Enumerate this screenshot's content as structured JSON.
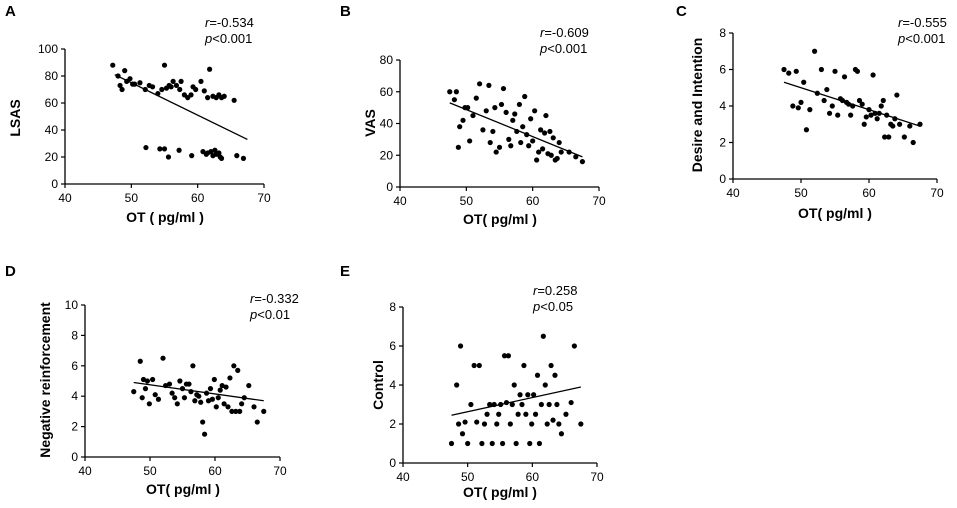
{
  "chart_data": [
    {
      "panel": "A",
      "type": "scatter",
      "xlabel": "OT ( pg/ml )",
      "ylabel": "LSAS",
      "xlim": [
        40,
        70
      ],
      "ylim": [
        0,
        100
      ],
      "xticks": [
        40,
        50,
        60,
        70
      ],
      "yticks": [
        0,
        20,
        40,
        60,
        80,
        100
      ],
      "r_label": "r",
      "r_value": "=-0.534",
      "p_label": "p",
      "p_value": "<0.001",
      "fit": [
        [
          47.5,
          81
        ],
        [
          67.5,
          33
        ]
      ],
      "points": [
        [
          47.2,
          88
        ],
        [
          48,
          80
        ],
        [
          48.3,
          73
        ],
        [
          48.6,
          70
        ],
        [
          49,
          84
        ],
        [
          49.3,
          76
        ],
        [
          49.8,
          78
        ],
        [
          50.2,
          74
        ],
        [
          50.5,
          74
        ],
        [
          51.3,
          75
        ],
        [
          52.1,
          70
        ],
        [
          52.7,
          73
        ],
        [
          53.2,
          72
        ],
        [
          54,
          67
        ],
        [
          54.6,
          70
        ],
        [
          55,
          88
        ],
        [
          55.3,
          71
        ],
        [
          55.7,
          73
        ],
        [
          56,
          72
        ],
        [
          56.3,
          76
        ],
        [
          56.8,
          73
        ],
        [
          57.3,
          70
        ],
        [
          57.5,
          76
        ],
        [
          58,
          66
        ],
        [
          58.5,
          64
        ],
        [
          59,
          66
        ],
        [
          59.3,
          72
        ],
        [
          59.7,
          70
        ],
        [
          60.5,
          76
        ],
        [
          61,
          69
        ],
        [
          61.5,
          64
        ],
        [
          61.8,
          85
        ],
        [
          62.3,
          65
        ],
        [
          62.8,
          64
        ],
        [
          63.2,
          66
        ],
        [
          63.6,
          64
        ],
        [
          64,
          65
        ],
        [
          65.5,
          62
        ],
        [
          52.2,
          27
        ],
        [
          54.3,
          26
        ],
        [
          55,
          26
        ],
        [
          55.6,
          20
        ],
        [
          57.2,
          25
        ],
        [
          59.1,
          21
        ],
        [
          60.8,
          24
        ],
        [
          61.3,
          22
        ],
        [
          61.5,
          23
        ],
        [
          62,
          24
        ],
        [
          62.3,
          21
        ],
        [
          62.6,
          25
        ],
        [
          62.8,
          22
        ],
        [
          63.2,
          23
        ],
        [
          63.4,
          20
        ],
        [
          63.6,
          19
        ],
        [
          65.9,
          21
        ],
        [
          66.9,
          19
        ]
      ]
    },
    {
      "panel": "B",
      "type": "scatter",
      "xlabel": "OT( pg/ml )",
      "ylabel": "VAS",
      "xlim": [
        40,
        70
      ],
      "ylim": [
        0,
        80
      ],
      "xticks": [
        40,
        50,
        60,
        70
      ],
      "yticks": [
        0,
        20,
        40,
        60,
        80
      ],
      "r_label": "r",
      "r_value": "=-0.609",
      "p_label": "p",
      "p_value": "<0.001",
      "fit": [
        [
          47.5,
          53
        ],
        [
          67.5,
          19
        ]
      ],
      "points": [
        [
          47.5,
          60
        ],
        [
          48.2,
          55
        ],
        [
          48.5,
          60
        ],
        [
          48.8,
          25
        ],
        [
          49,
          38
        ],
        [
          49.5,
          42
        ],
        [
          49.8,
          50
        ],
        [
          50.2,
          50
        ],
        [
          50.5,
          29
        ],
        [
          51,
          45
        ],
        [
          51.5,
          56
        ],
        [
          52,
          65
        ],
        [
          52.5,
          36
        ],
        [
          53,
          48
        ],
        [
          53.4,
          64
        ],
        [
          53.6,
          28
        ],
        [
          54,
          35
        ],
        [
          54.3,
          50
        ],
        [
          54.5,
          22
        ],
        [
          55,
          25
        ],
        [
          55.3,
          52
        ],
        [
          55.6,
          62
        ],
        [
          56,
          47
        ],
        [
          56.4,
          30
        ],
        [
          56.7,
          26
        ],
        [
          57,
          42
        ],
        [
          57.3,
          46
        ],
        [
          57.6,
          35
        ],
        [
          58,
          52
        ],
        [
          58.2,
          28
        ],
        [
          58.5,
          38
        ],
        [
          58.8,
          57
        ],
        [
          59.1,
          33
        ],
        [
          59.4,
          26
        ],
        [
          59.7,
          43
        ],
        [
          60,
          29
        ],
        [
          60.3,
          48
        ],
        [
          60.6,
          17
        ],
        [
          60.9,
          22
        ],
        [
          61.2,
          36
        ],
        [
          61.5,
          24
        ],
        [
          61.8,
          34
        ],
        [
          62,
          45
        ],
        [
          62.3,
          21
        ],
        [
          62.6,
          35
        ],
        [
          62.8,
          20
        ],
        [
          63.1,
          31
        ],
        [
          63.4,
          17
        ],
        [
          63.7,
          18
        ],
        [
          64,
          28
        ],
        [
          64.3,
          22
        ],
        [
          65.5,
          22
        ],
        [
          66.5,
          19
        ],
        [
          67.5,
          16
        ]
      ]
    },
    {
      "panel": "C",
      "type": "scatter",
      "xlabel": "OT( pg/ml )",
      "ylabel": "Desire and Intention",
      "xlim": [
        40,
        70
      ],
      "ylim": [
        0,
        8
      ],
      "xticks": [
        40,
        50,
        60,
        70
      ],
      "yticks": [
        0,
        2,
        4,
        6,
        8
      ],
      "r_label": "r",
      "r_value": "=-0.555",
      "p_label": "p",
      "p_value": "<0.001",
      "fit": [
        [
          47.5,
          5.3
        ],
        [
          67.5,
          2.9
        ]
      ],
      "points": [
        [
          47.5,
          6
        ],
        [
          48.2,
          5.8
        ],
        [
          48.8,
          4
        ],
        [
          49.3,
          5.9
        ],
        [
          49.6,
          3.9
        ],
        [
          50,
          4.2
        ],
        [
          50.4,
          5.3
        ],
        [
          50.8,
          2.7
        ],
        [
          51.3,
          3.8
        ],
        [
          52,
          7
        ],
        [
          52.4,
          4.7
        ],
        [
          53,
          6
        ],
        [
          53.4,
          4.3
        ],
        [
          53.8,
          4.9
        ],
        [
          54.2,
          3.6
        ],
        [
          54.6,
          4
        ],
        [
          55,
          5.9
        ],
        [
          55.4,
          3.5
        ],
        [
          55.8,
          4.4
        ],
        [
          56.1,
          4.3
        ],
        [
          56.4,
          5.6
        ],
        [
          56.7,
          4.2
        ],
        [
          57,
          4.1
        ],
        [
          57.3,
          3.5
        ],
        [
          57.6,
          4
        ],
        [
          58,
          6
        ],
        [
          58.3,
          5.9
        ],
        [
          58.6,
          4.3
        ],
        [
          59,
          4.1
        ],
        [
          59.3,
          3
        ],
        [
          59.6,
          3.4
        ],
        [
          60,
          3.8
        ],
        [
          60.3,
          3.5
        ],
        [
          60.6,
          5.7
        ],
        [
          60.9,
          3.6
        ],
        [
          61.2,
          3.3
        ],
        [
          61.5,
          3.6
        ],
        [
          61.8,
          4
        ],
        [
          62.1,
          4.3
        ],
        [
          62.3,
          2.3
        ],
        [
          62.6,
          3.5
        ],
        [
          62.9,
          2.3
        ],
        [
          63.2,
          3
        ],
        [
          63.5,
          2.9
        ],
        [
          63.8,
          3.3
        ],
        [
          64.1,
          4.6
        ],
        [
          64.5,
          3
        ],
        [
          65.2,
          2.3
        ],
        [
          66,
          2.9
        ],
        [
          66.5,
          2
        ],
        [
          67.5,
          3
        ]
      ]
    },
    {
      "panel": "D",
      "type": "scatter",
      "xlabel": "OT( pg/ml )",
      "ylabel": "Negative reinforcement",
      "xlim": [
        40,
        70
      ],
      "ylim": [
        0,
        10
      ],
      "xticks": [
        40,
        50,
        60,
        70
      ],
      "yticks": [
        0,
        2,
        4,
        6,
        8,
        10
      ],
      "r_label": "r",
      "r_value": "=-0.332",
      "p_label": "p",
      "p_value": "<0.01",
      "fit": [
        [
          47.5,
          4.9
        ],
        [
          67.5,
          3.7
        ]
      ],
      "points": [
        [
          47.5,
          4.3
        ],
        [
          48.5,
          6.3
        ],
        [
          48.8,
          3.9
        ],
        [
          49,
          5.1
        ],
        [
          49.3,
          4.5
        ],
        [
          49.6,
          5
        ],
        [
          49.9,
          3.5
        ],
        [
          50.4,
          5.1
        ],
        [
          50.8,
          4.1
        ],
        [
          51.3,
          3.8
        ],
        [
          52,
          6.5
        ],
        [
          52.4,
          4.7
        ],
        [
          53,
          4.8
        ],
        [
          53.4,
          4.2
        ],
        [
          53.8,
          3.9
        ],
        [
          54.2,
          3.5
        ],
        [
          54.6,
          5
        ],
        [
          55,
          4.5
        ],
        [
          55.3,
          3.9
        ],
        [
          55.6,
          4.8
        ],
        [
          56,
          4.8
        ],
        [
          56.3,
          4.3
        ],
        [
          56.6,
          6
        ],
        [
          56.9,
          3.7
        ],
        [
          57.2,
          4.1
        ],
        [
          57.5,
          4
        ],
        [
          57.8,
          3.6
        ],
        [
          58.1,
          2.3
        ],
        [
          58.4,
          1.5
        ],
        [
          58.7,
          4.2
        ],
        [
          59,
          3.7
        ],
        [
          59.3,
          4.5
        ],
        [
          59.6,
          3.8
        ],
        [
          59.9,
          5.1
        ],
        [
          60.2,
          3.3
        ],
        [
          60.5,
          3.9
        ],
        [
          60.8,
          4.4
        ],
        [
          61.1,
          4.7
        ],
        [
          61.4,
          3.5
        ],
        [
          61.7,
          4.6
        ],
        [
          62,
          3.3
        ],
        [
          62.3,
          5.2
        ],
        [
          62.6,
          3
        ],
        [
          62.9,
          6
        ],
        [
          63.2,
          3
        ],
        [
          63.5,
          5.7
        ],
        [
          63.8,
          3
        ],
        [
          64.1,
          3.5
        ],
        [
          64.5,
          3.9
        ],
        [
          65.2,
          4.7
        ],
        [
          66,
          3.3
        ],
        [
          66.5,
          2.3
        ],
        [
          67.5,
          3
        ]
      ]
    },
    {
      "panel": "E",
      "type": "scatter",
      "xlabel": "OT( pg/ml )",
      "ylabel": "Control",
      "xlim": [
        40,
        70
      ],
      "ylim": [
        0,
        8
      ],
      "xticks": [
        40,
        50,
        60,
        70
      ],
      "yticks": [
        0,
        2,
        4,
        6,
        8
      ],
      "r_label": "r",
      "r_value": "=0.258",
      "p_label": "p",
      "p_value": "<0.05",
      "fit": [
        [
          47.5,
          2.45
        ],
        [
          67.5,
          3.9
        ]
      ],
      "points": [
        [
          47.5,
          1
        ],
        [
          48.3,
          4
        ],
        [
          48.6,
          2
        ],
        [
          48.9,
          6
        ],
        [
          49.2,
          1.5
        ],
        [
          49.6,
          2.1
        ],
        [
          50,
          1
        ],
        [
          50.5,
          3
        ],
        [
          51,
          5
        ],
        [
          51.4,
          2.1
        ],
        [
          51.8,
          5
        ],
        [
          52.2,
          1
        ],
        [
          52.6,
          2
        ],
        [
          53,
          2.5
        ],
        [
          53.4,
          3
        ],
        [
          53.8,
          1
        ],
        [
          54.1,
          3
        ],
        [
          54.5,
          2
        ],
        [
          54.8,
          2.5
        ],
        [
          55.1,
          3
        ],
        [
          55.4,
          1
        ],
        [
          55.7,
          5.5
        ],
        [
          56,
          3.1
        ],
        [
          56.3,
          5.5
        ],
        [
          56.6,
          2
        ],
        [
          56.9,
          3
        ],
        [
          57.2,
          4
        ],
        [
          57.5,
          1
        ],
        [
          57.8,
          2.5
        ],
        [
          58.1,
          3.5
        ],
        [
          58.4,
          3
        ],
        [
          58.7,
          5
        ],
        [
          59,
          2.5
        ],
        [
          59.3,
          3.5
        ],
        [
          59.6,
          1
        ],
        [
          59.9,
          2
        ],
        [
          60.2,
          3.5
        ],
        [
          60.5,
          2.5
        ],
        [
          60.8,
          4.5
        ],
        [
          61.1,
          1
        ],
        [
          61.4,
          3
        ],
        [
          61.7,
          6.5
        ],
        [
          62,
          4
        ],
        [
          62.3,
          2
        ],
        [
          62.6,
          3
        ],
        [
          62.9,
          5
        ],
        [
          63.2,
          2.2
        ],
        [
          63.5,
          4.5
        ],
        [
          63.8,
          3
        ],
        [
          64.1,
          2
        ],
        [
          64.5,
          1.5
        ],
        [
          65.2,
          2.5
        ],
        [
          66,
          3.1
        ],
        [
          66.5,
          6
        ],
        [
          67.5,
          2
        ]
      ]
    }
  ]
}
